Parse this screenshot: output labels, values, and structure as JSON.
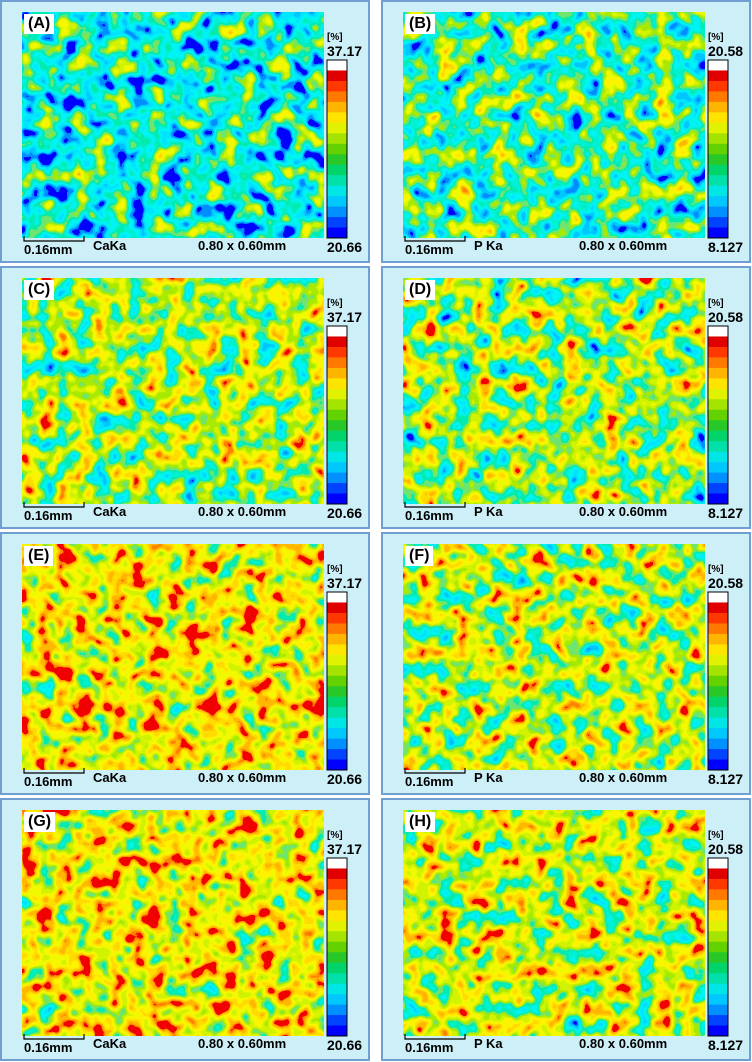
{
  "panels": [
    {
      "label": "(A)",
      "unit": "[%]",
      "max": "37.17",
      "min": "20.66",
      "scale": "0.16mm",
      "element": "CaKa",
      "size": "0.80 x 0.60mm"
    },
    {
      "label": "(B)",
      "unit": "[%]",
      "max": "20.58",
      "min": "8.127",
      "scale": "0.16mm",
      "element": "P Ka",
      "size": "0.80 x 0.60mm"
    },
    {
      "label": "(C)",
      "unit": "[%]",
      "max": "37.17",
      "min": "20.66",
      "scale": "0.16mm",
      "element": "CaKa",
      "size": "0.80 x 0.60mm"
    },
    {
      "label": "(D)",
      "unit": "[%]",
      "max": "20.58",
      "min": "8.127",
      "scale": "0.16mm",
      "element": "P Ka",
      "size": "0.80 x 0.60mm"
    },
    {
      "label": "(E)",
      "unit": "[%]",
      "max": "37.17",
      "min": "20.66",
      "scale": "0.16mm",
      "element": "CaKa",
      "size": "0.80 x 0.60mm"
    },
    {
      "label": "(F)",
      "unit": "[%]",
      "max": "20.58",
      "min": "8.127",
      "scale": "0.16mm",
      "element": "P Ka",
      "size": "0.80 x 0.60mm"
    },
    {
      "label": "(G)",
      "unit": "[%]",
      "max": "37.17",
      "min": "20.66",
      "scale": "0.16mm",
      "element": "CaKa",
      "size": "0.80 x 0.60mm"
    },
    {
      "label": "(H)",
      "unit": "[%]",
      "max": "20.58",
      "min": "8.127",
      "scale": "0.16mm",
      "element": "P Ka",
      "size": "0.80 x 0.60mm"
    }
  ]
}
